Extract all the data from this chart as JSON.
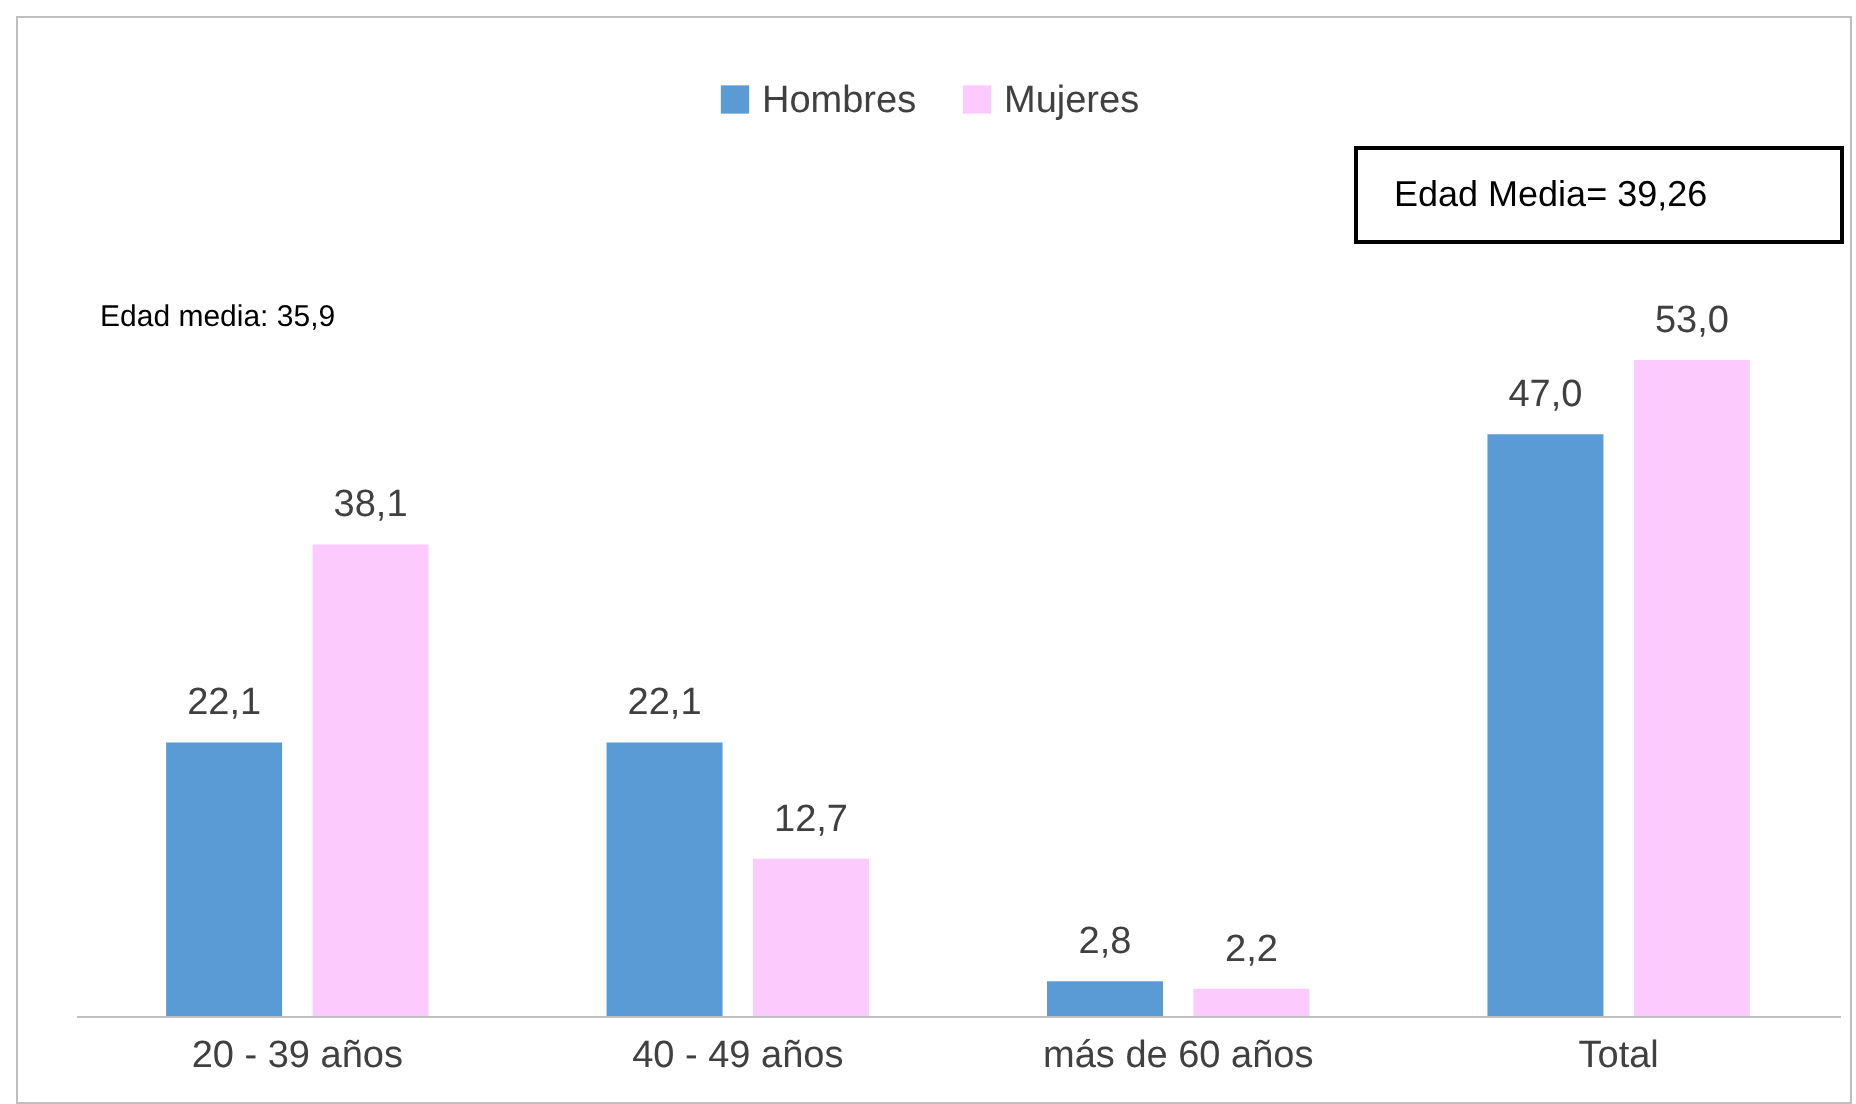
{
  "chart_data": {
    "type": "bar",
    "categories": [
      "20 - 39 años",
      "40 - 49 años",
      "más de 60 años",
      "Total"
    ],
    "series": [
      {
        "name": "Hombres",
        "color": "#5b9bd5",
        "values": [
          22.1,
          22.1,
          2.8,
          47.0
        ],
        "value_labels": [
          "22,1",
          "22,1",
          "2,8",
          "47,0"
        ]
      },
      {
        "name": "Mujeres",
        "color": "#fdcafd",
        "values": [
          38.1,
          12.7,
          2.2,
          53.0
        ],
        "value_labels": [
          "38,1",
          "12,7",
          "2,2",
          "53,0"
        ]
      }
    ],
    "legend": "top",
    "annotations": [
      "Edad media: 35,9",
      "Edad Media= 39,26"
    ]
  }
}
